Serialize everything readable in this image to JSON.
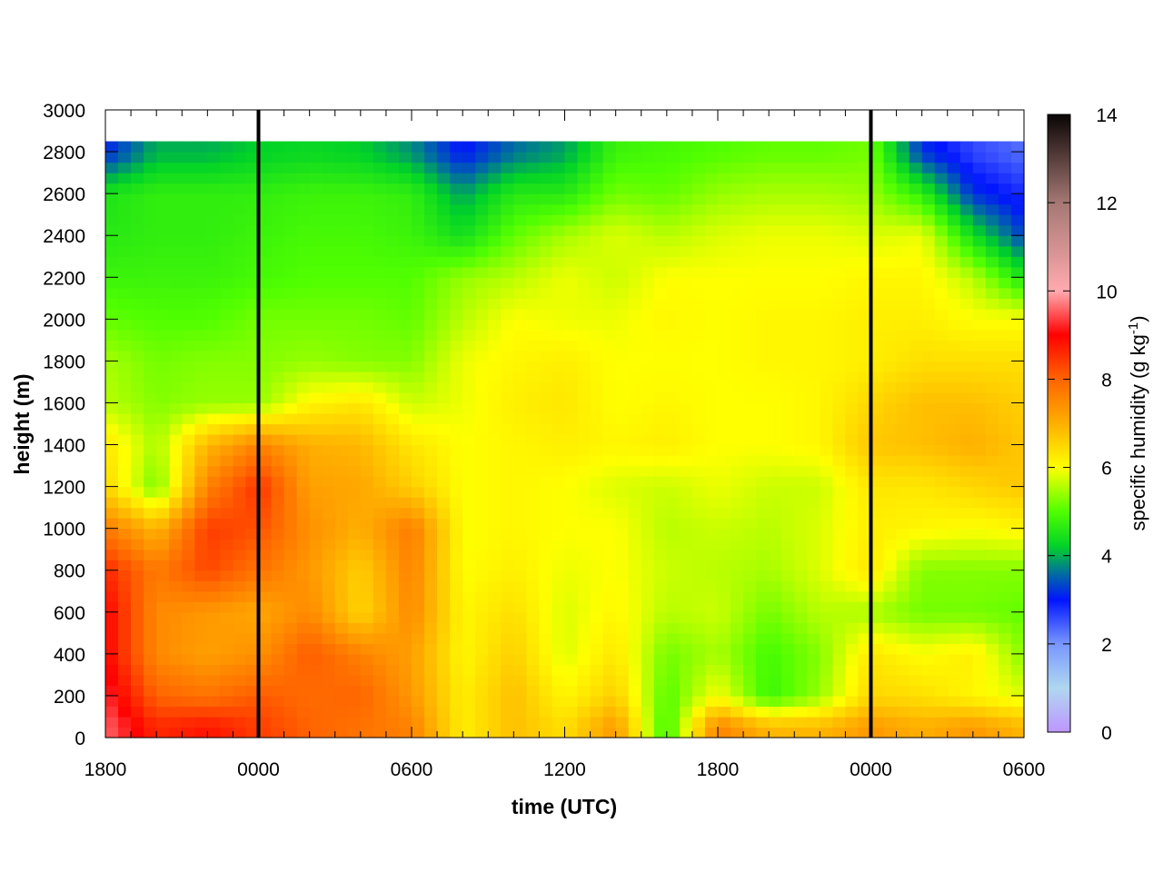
{
  "chart_data": {
    "type": "heatmap",
    "title": "",
    "xlabel": "time (UTC)",
    "ylabel": "height (m)",
    "x_ticks": [
      "1800",
      "0000",
      "0600",
      "1200",
      "1800",
      "0000",
      "0600"
    ],
    "x_tick_hours": [
      0,
      6,
      12,
      18,
      24,
      30,
      36
    ],
    "xlim": [
      0,
      36
    ],
    "y_ticks": [
      0,
      200,
      400,
      600,
      800,
      1000,
      1200,
      1400,
      1600,
      1800,
      2000,
      2200,
      2400,
      2600,
      2800,
      3000
    ],
    "ylim": [
      0,
      3000
    ],
    "data_top_height": 2850,
    "vertical_lines_hours": [
      6,
      30
    ],
    "colorbar": {
      "label": "specific humidity (g kg",
      "label_sup": "-1",
      "label_end": ")",
      "ticks": [
        0,
        2,
        4,
        6,
        8,
        10,
        12,
        14
      ],
      "range": [
        0,
        14
      ]
    },
    "z_grid": {
      "units": "g kg-1",
      "x_hours": [
        0,
        2,
        4,
        6,
        8,
        10,
        12,
        14,
        16,
        18,
        20,
        22,
        24,
        26,
        28,
        30,
        32,
        34,
        36
      ],
      "heights": [
        50,
        200,
        400,
        600,
        800,
        1000,
        1200,
        1400,
        1600,
        1800,
        2000,
        2200,
        2400,
        2600,
        2800
      ],
      "values": [
        [
          9.6,
          8.6,
          8.8,
          8.4,
          8.0,
          7.8,
          7.6,
          6.2,
          6.8,
          6.4,
          7.3,
          4.8,
          7.6,
          6.9,
          6.9,
          7.3,
          7.0,
          7.3,
          6.9
        ],
        [
          9.3,
          8.0,
          7.8,
          8.1,
          7.9,
          8.0,
          7.3,
          6.2,
          6.8,
          6.1,
          6.6,
          5.0,
          6.0,
          4.8,
          5.4,
          6.5,
          6.4,
          6.1,
          5.8
        ],
        [
          9.0,
          7.5,
          7.2,
          7.4,
          8.1,
          7.6,
          7.2,
          6.1,
          6.6,
          5.8,
          6.3,
          5.2,
          5.5,
          4.9,
          5.3,
          6.3,
          6.0,
          6.2,
          5.3
        ],
        [
          9.0,
          7.5,
          7.3,
          7.1,
          7.5,
          6.5,
          7.5,
          6.1,
          6.4,
          5.8,
          6.1,
          5.6,
          5.7,
          5.2,
          5.6,
          5.5,
          5.2,
          5.2,
          5.1
        ],
        [
          8.6,
          7.7,
          8.3,
          7.8,
          7.3,
          6.6,
          7.6,
          6.0,
          6.2,
          5.9,
          6.0,
          5.7,
          5.6,
          5.5,
          5.8,
          6.3,
          5.3,
          5.3,
          5.3
        ],
        [
          7.7,
          6.9,
          8.4,
          8.2,
          7.4,
          7.0,
          7.7,
          6.0,
          6.1,
          6.0,
          6.0,
          5.6,
          5.7,
          5.6,
          5.8,
          6.2,
          6.1,
          6.0,
          6.1
        ],
        [
          6.5,
          5.2,
          7.6,
          8.5,
          7.2,
          7.1,
          6.6,
          6.0,
          6.1,
          6.0,
          5.8,
          5.7,
          5.9,
          5.7,
          5.7,
          6.3,
          6.3,
          6.5,
          6.7
        ],
        [
          6.3,
          5.5,
          6.9,
          7.6,
          7.0,
          6.9,
          6.3,
          6.0,
          6.1,
          6.2,
          6.1,
          6.2,
          6.0,
          6.0,
          6.1,
          6.7,
          6.8,
          7.0,
          6.7
        ],
        [
          5.6,
          5.3,
          5.4,
          5.4,
          6.1,
          6.3,
          5.7,
          5.9,
          6.2,
          6.3,
          6.0,
          6.1,
          6.0,
          6.0,
          6.1,
          6.5,
          6.8,
          6.8,
          6.6
        ],
        [
          5.5,
          5.2,
          5.3,
          5.3,
          5.4,
          5.3,
          5.3,
          5.9,
          6.1,
          6.2,
          6.0,
          6.0,
          6.0,
          6.1,
          6.1,
          6.2,
          6.4,
          6.4,
          6.4
        ],
        [
          5.1,
          5.0,
          5.0,
          5.2,
          5.2,
          5.2,
          5.1,
          5.6,
          6.0,
          5.9,
          5.9,
          6.1,
          6.0,
          6.1,
          6.1,
          6.2,
          6.2,
          6.0,
          6.0
        ],
        [
          4.8,
          4.8,
          4.8,
          4.9,
          5.0,
          5.0,
          5.0,
          5.4,
          5.6,
          5.9,
          5.7,
          6.0,
          6.0,
          6.0,
          6.0,
          6.1,
          6.1,
          5.6,
          4.5
        ],
        [
          4.6,
          4.7,
          4.7,
          4.8,
          4.9,
          4.9,
          4.8,
          4.4,
          5.1,
          5.5,
          5.8,
          5.6,
          5.8,
          5.9,
          5.9,
          5.8,
          5.9,
          4.4,
          3.3
        ],
        [
          4.5,
          4.7,
          4.7,
          4.7,
          4.8,
          4.8,
          4.7,
          3.9,
          4.6,
          4.6,
          5.2,
          5.1,
          5.4,
          5.5,
          5.5,
          5.4,
          4.7,
          3.2,
          2.8
        ],
        [
          3.1,
          4.0,
          4.0,
          4.2,
          4.3,
          4.2,
          3.8,
          3.0,
          3.6,
          3.9,
          4.8,
          4.9,
          5.0,
          5.1,
          5.1,
          5.2,
          3.2,
          2.6,
          2.3
        ]
      ]
    }
  }
}
